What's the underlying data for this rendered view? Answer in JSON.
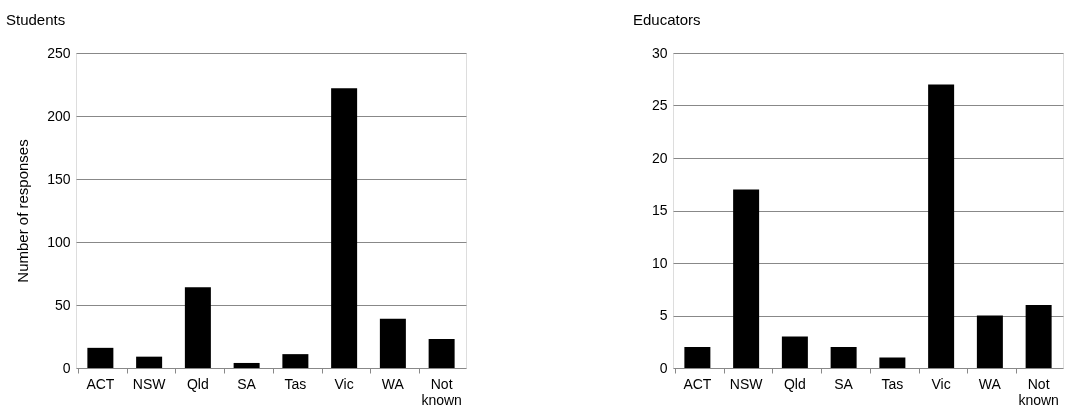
{
  "chart_data": [
    {
      "type": "bar",
      "title": "Students",
      "ylabel": "Number of responses",
      "categories": [
        "ACT",
        "NSW",
        "Qld",
        "SA",
        "Tas",
        "Vic",
        "WA",
        "Not known"
      ],
      "values": [
        16,
        9,
        64,
        4,
        11,
        222,
        39,
        23
      ],
      "color": "#000000",
      "ylim": [
        0,
        250
      ],
      "yticks": [
        0,
        50,
        100,
        150,
        200,
        250
      ],
      "grid": "y"
    },
    {
      "type": "bar",
      "title": "Educators",
      "categories": [
        "ACT",
        "NSW",
        "Qld",
        "SA",
        "Tas",
        "Vic",
        "WA",
        "Not known"
      ],
      "values": [
        2,
        17,
        3,
        2,
        1,
        27,
        5,
        6
      ],
      "color": "#000000",
      "ylim": [
        0,
        30
      ],
      "yticks": [
        0,
        5,
        10,
        15,
        20,
        25,
        30
      ],
      "grid": "y"
    }
  ]
}
